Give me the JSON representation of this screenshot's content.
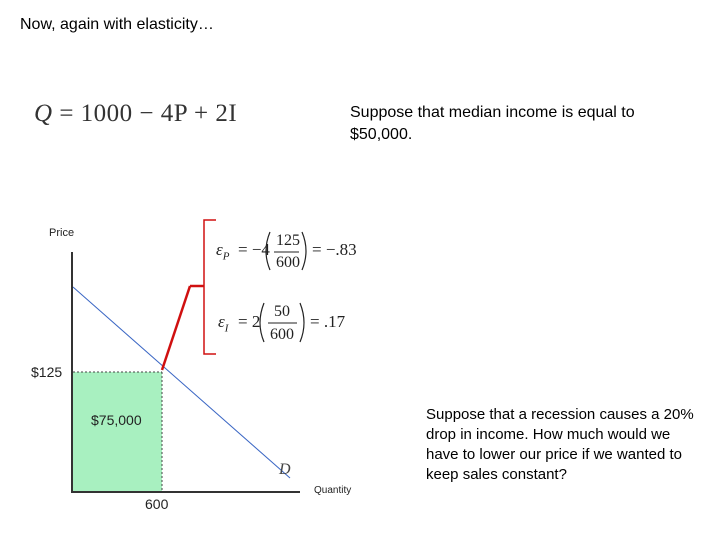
{
  "slide": {
    "title": "Now, again with elasticity…",
    "equation": {
      "lhs": "Q",
      "rhs": "= 1000 − 4P + 2I"
    },
    "median_income_text": "Suppose that median income is equal to $50,000.",
    "recession_text": "Suppose that a recession causes a 20% drop in income.  How much would we have to lower our price if we wanted to keep sales constant?"
  },
  "graph": {
    "y_axis_label": "Price",
    "x_axis_label": "Quantity",
    "price_label": "$125",
    "quantity_label": "600",
    "revenue_label": "$75,000",
    "curve_label": "D",
    "shaded_color": "#a8f0c0",
    "arrow_color": "#d01010"
  },
  "formulas": {
    "price_elasticity": {
      "symbol": "ε",
      "subscript": "P",
      "coefficient": "= −4",
      "numerator": "125",
      "denominator": "600",
      "result": "= −.83"
    },
    "income_elasticity": {
      "symbol": "ε",
      "subscript": "I",
      "coefficient": "= 2",
      "numerator": "50",
      "denominator": "600",
      "result": "= .17"
    }
  }
}
